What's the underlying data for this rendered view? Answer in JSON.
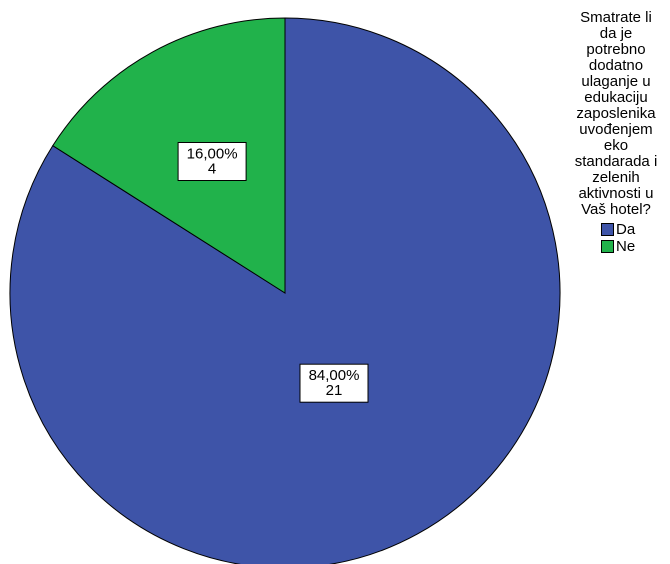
{
  "chart_data": {
    "type": "pie",
    "legend_title": "Smatrate li da je potrebno dodatno ulaganje u edukaciju zaposlenika uvođenjem eko standarada i zelenih aktivnosti u Vaš hotel?",
    "legend_title_lines": [
      "Smatrate li",
      "da je",
      "potrebno",
      "dodatno",
      "ulaganje u",
      "edukaciju",
      "zaposlenika",
      "uvođenjem",
      "eko",
      "standarada i",
      "zelenih",
      "aktivnosti u",
      "Vaš hotel?"
    ],
    "legend_placement": "right",
    "start_angle": "12 o'clock",
    "direction": "clockwise",
    "slices": [
      {
        "name": "Da",
        "value": 21,
        "percent_label": "84,00%",
        "count_label": "21",
        "color": "#3e54a8"
      },
      {
        "name": "Ne",
        "value": 4,
        "percent_label": "16,00%",
        "count_label": "4",
        "color": "#21b24b"
      }
    ]
  }
}
